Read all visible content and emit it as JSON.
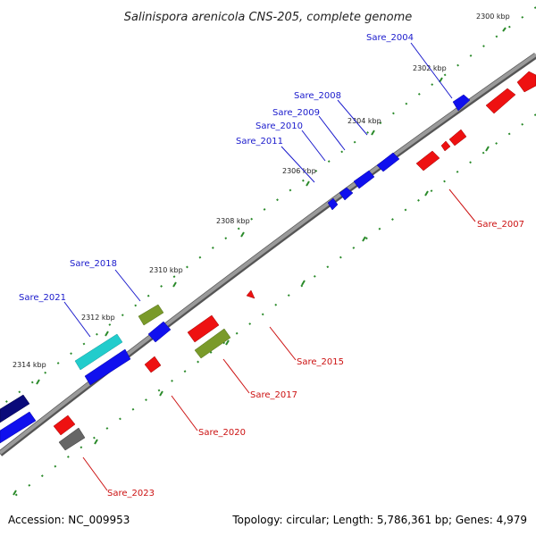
{
  "title": "Salinispora arenicola CNS-205, complete genome",
  "footer": {
    "accession": "Accession: NC_009953",
    "summary": "Topology: circular; Length: 5,786,361 bp; Genes: 4,979"
  },
  "ticks": [
    "2300 kbp",
    "2302 kbp",
    "2304 kbp",
    "2306 kbp",
    "2308 kbp",
    "2310 kbp",
    "2312 kbp",
    "2314 kbp"
  ],
  "genes_forward": [
    "Sare_2004",
    "Sare_2008",
    "Sare_2009",
    "Sare_2010",
    "Sare_2011",
    "Sare_2018",
    "Sare_2021"
  ],
  "genes_reverse": [
    "Sare_2007",
    "Sare_2015",
    "Sare_2017",
    "Sare_2020",
    "Sare_2023"
  ],
  "colors": {
    "forward_label": "#1a1acc",
    "reverse_label": "#cc1111",
    "forward_gene": "#1010ee",
    "reverse_gene": "#ee1111",
    "backbone": "#808080",
    "tick_dots": "#2a8a2a",
    "olive_gene": "#7a9a2a",
    "cyan_gene": "#22cccc",
    "navy_gene": "#0a0a7a",
    "gray_gene": "#666666"
  }
}
